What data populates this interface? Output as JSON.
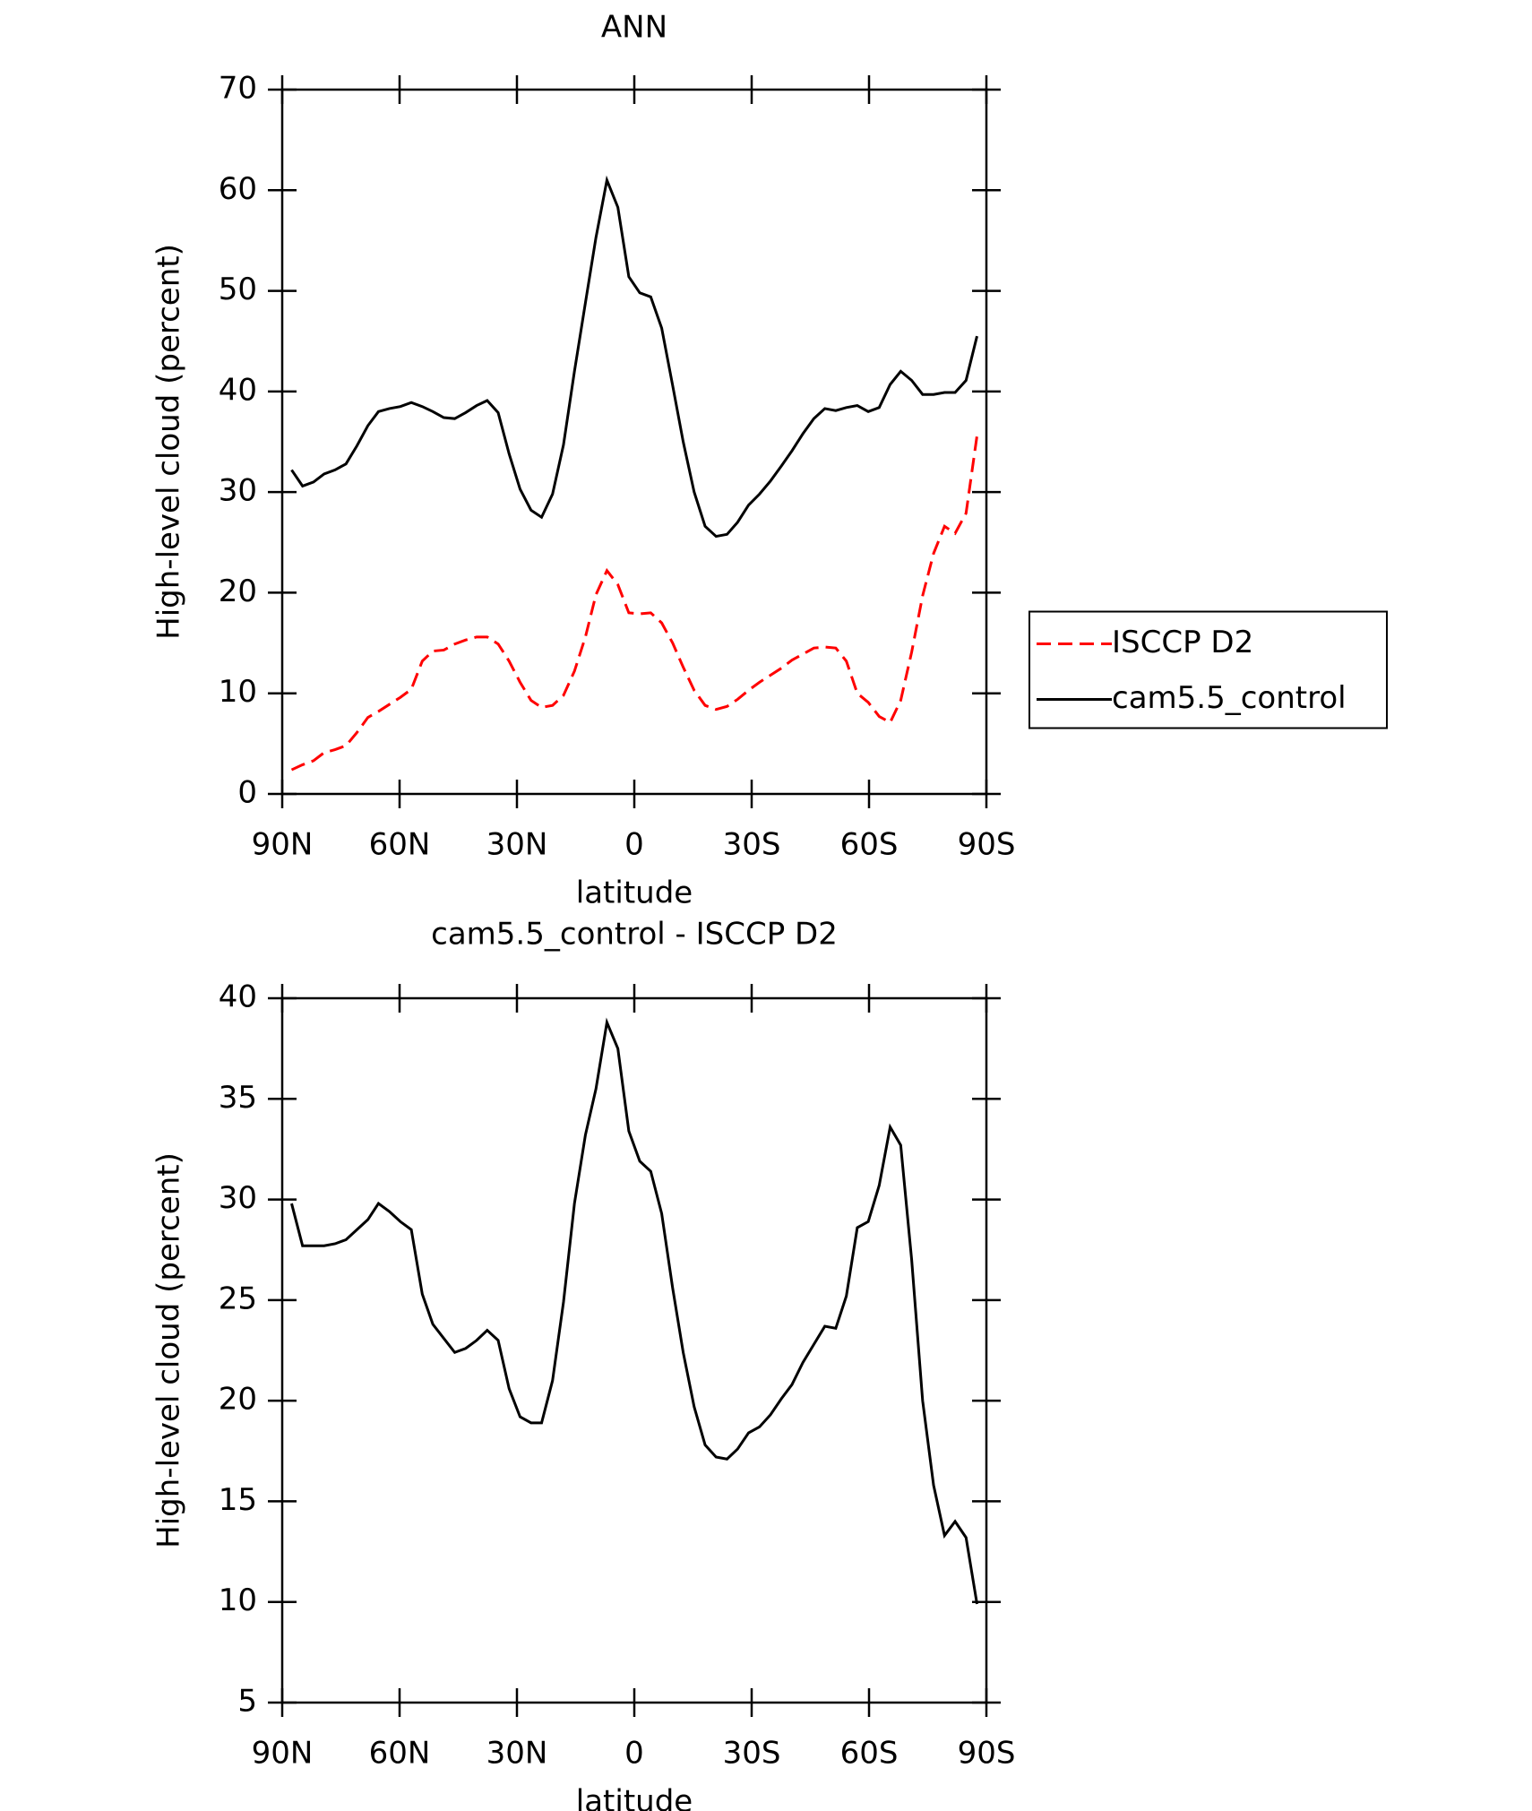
{
  "chart_data": [
    {
      "type": "line",
      "title": "ANN",
      "xlabel": "latitude",
      "ylabel": "High-level cloud (percent)",
      "x": [
        87.6,
        84.8,
        82.0,
        79.3,
        76.5,
        73.7,
        70.9,
        68.1,
        65.4,
        62.6,
        59.8,
        57.0,
        54.2,
        51.5,
        48.7,
        45.9,
        43.1,
        40.3,
        37.6,
        34.8,
        32.0,
        29.2,
        26.4,
        23.7,
        20.9,
        18.1,
        15.3,
        12.5,
        9.8,
        7.0,
        4.2,
        1.4,
        -1.4,
        -4.2,
        -7.0,
        -9.8,
        -12.5,
        -15.3,
        -18.1,
        -20.9,
        -23.7,
        -26.4,
        -29.2,
        -32.0,
        -34.8,
        -37.6,
        -40.3,
        -43.1,
        -45.9,
        -48.7,
        -51.5,
        -54.2,
        -57.0,
        -59.8,
        -62.6,
        -65.4,
        -68.1,
        -70.9,
        -73.7,
        -76.5,
        -79.3,
        -82.0,
        -84.8,
        -87.6
      ],
      "series": [
        {
          "name": "ISCCP D2",
          "color": "#ff0000",
          "dash": true,
          "values": [
            2.4,
            2.9,
            3.3,
            4.1,
            4.4,
            4.8,
            6.1,
            7.6,
            8.2,
            8.9,
            9.6,
            10.4,
            13.2,
            14.2,
            14.3,
            14.9,
            15.3,
            15.6,
            15.6,
            14.9,
            13.2,
            11.1,
            9.3,
            8.6,
            8.8,
            9.8,
            12.2,
            15.6,
            19.8,
            22.2,
            20.8,
            18,
            17.9,
            18,
            17,
            15,
            12.6,
            10.3,
            8.8,
            8.4,
            8.7,
            9.4,
            10.3,
            11.1,
            11.8,
            12.5,
            13.3,
            13.9,
            14.5,
            14.6,
            14.5,
            13.2,
            10,
            9.1,
            7.7,
            7.1,
            9.3,
            14.1,
            19.7,
            23.9,
            26.6,
            25.9,
            27.9,
            35.6
          ]
        },
        {
          "name": "cam5.5_control",
          "color": "#000000",
          "dash": false,
          "values": [
            32.2,
            30.6,
            31,
            31.8,
            32.2,
            32.8,
            34.6,
            36.6,
            38,
            38.3,
            38.5,
            38.9,
            38.5,
            38,
            37.4,
            37.3,
            37.9,
            38.6,
            39.1,
            37.9,
            33.8,
            30.3,
            28.2,
            27.5,
            29.8,
            34.7,
            42,
            48.8,
            55.3,
            61,
            58.3,
            51.4,
            49.8,
            49.4,
            46.3,
            40.6,
            35,
            30,
            26.6,
            25.6,
            25.8,
            27,
            28.7,
            29.8,
            31.1,
            32.6,
            34.1,
            35.8,
            37.3,
            38.3,
            38.1,
            38.4,
            38.6,
            38,
            38.4,
            40.7,
            42,
            41.1,
            39.7,
            39.7,
            39.9,
            39.9,
            41.1,
            45.5
          ]
        }
      ],
      "xlim": [
        90,
        -90
      ],
      "xticks": [
        {
          "value": 90,
          "label": "90N"
        },
        {
          "value": 60,
          "label": "60N"
        },
        {
          "value": 30,
          "label": "30N"
        },
        0,
        {
          "value": -30,
          "label": "30S"
        },
        {
          "value": -60,
          "label": "60S"
        },
        {
          "value": -90,
          "label": "90S"
        }
      ],
      "ylim": [
        0,
        70
      ],
      "yticks": [
        0,
        10,
        20,
        30,
        40,
        50,
        60,
        70
      ],
      "legend": "right"
    },
    {
      "type": "line",
      "title": "cam5.5_control - ISCCP D2",
      "xlabel": "latitude",
      "ylabel": "High-level cloud (percent)",
      "x": [
        87.6,
        84.8,
        82.0,
        79.3,
        76.5,
        73.7,
        70.9,
        68.1,
        65.4,
        62.6,
        59.8,
        57.0,
        54.2,
        51.5,
        48.7,
        45.9,
        43.1,
        40.3,
        37.6,
        34.8,
        32.0,
        29.2,
        26.4,
        23.7,
        20.9,
        18.1,
        15.3,
        12.5,
        9.8,
        7.0,
        4.2,
        1.4,
        -1.4,
        -4.2,
        -7.0,
        -9.8,
        -12.5,
        -15.3,
        -18.1,
        -20.9,
        -23.7,
        -26.4,
        -29.2,
        -32.0,
        -34.8,
        -37.6,
        -40.3,
        -43.1,
        -45.9,
        -48.7,
        -51.5,
        -54.2,
        -57.0,
        -59.8,
        -62.6,
        -65.4,
        -68.1,
        -70.9,
        -73.7,
        -76.5,
        -79.3,
        -82.0,
        -84.8,
        -87.6
      ],
      "values": [
        29.8,
        27.7,
        27.7,
        27.7,
        27.8,
        28.0,
        28.5,
        29.0,
        29.8,
        29.4,
        28.9,
        28.5,
        25.3,
        23.8,
        23.1,
        22.4,
        22.6,
        23.0,
        23.5,
        23.0,
        20.6,
        19.2,
        18.9,
        18.9,
        21.0,
        24.9,
        29.8,
        33.2,
        35.5,
        38.8,
        37.5,
        33.4,
        31.9,
        31.4,
        29.3,
        25.6,
        22.4,
        19.7,
        17.8,
        17.2,
        17.1,
        17.6,
        18.4,
        18.7,
        19.3,
        20.1,
        20.8,
        21.9,
        22.8,
        23.7,
        23.6,
        25.2,
        28.6,
        28.9,
        30.7,
        33.6,
        32.7,
        27.0,
        20.0,
        15.8,
        13.3,
        14.0,
        13.2,
        9.9
      ],
      "color": "#000000",
      "xlim": [
        90,
        -90
      ],
      "xticks": [
        {
          "value": 90,
          "label": "90N"
        },
        {
          "value": 60,
          "label": "60N"
        },
        {
          "value": 30,
          "label": "30N"
        },
        0,
        {
          "value": -30,
          "label": "30S"
        },
        {
          "value": -60,
          "label": "60S"
        },
        {
          "value": -90,
          "label": "90S"
        }
      ],
      "ylim": [
        5,
        40
      ],
      "yticks": [
        5,
        10,
        15,
        20,
        25,
        30,
        35,
        40
      ]
    }
  ]
}
